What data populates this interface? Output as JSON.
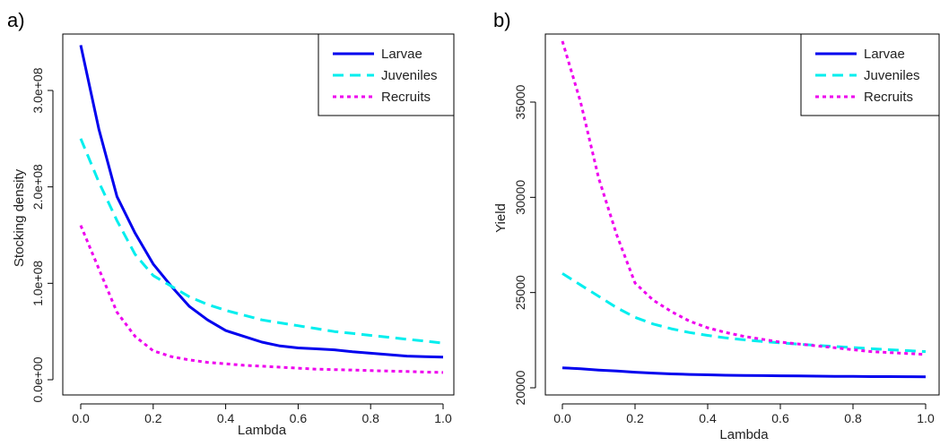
{
  "chart_data": [
    {
      "type": "line",
      "panel_label": "a)",
      "xlabel": "Lambda",
      "ylabel": "Stocking density",
      "xlim": [
        0,
        1
      ],
      "ylim": [
        0,
        360000000
      ],
      "xticks": [
        0,
        0.2,
        0.4,
        0.6,
        0.8,
        1.0
      ],
      "xtick_labels": [
        "0.0",
        "0.2",
        "0.4",
        "0.6",
        "0.8",
        "1.0"
      ],
      "yticks": [
        0,
        100000000,
        200000000,
        300000000
      ],
      "ytick_labels": [
        "0.0e+00",
        "1.0e+08",
        "2.0e+08",
        "3.0e+08"
      ],
      "legend_position": "top-right",
      "x": [
        0,
        0.05,
        0.1,
        0.15,
        0.2,
        0.25,
        0.3,
        0.35,
        0.4,
        0.45,
        0.5,
        0.55,
        0.6,
        0.65,
        0.7,
        0.75,
        0.8,
        0.85,
        0.9,
        0.95,
        1.0
      ],
      "series": [
        {
          "name": "Larvae",
          "color": "#0000ee",
          "style": "solid",
          "values": [
            347000000,
            260000000,
            190000000,
            152000000,
            120000000,
            97000000,
            76000000,
            62000000,
            51000000,
            45000000,
            39000000,
            35000000,
            33000000,
            32000000,
            31000000,
            29000000,
            27500000,
            26000000,
            24500000,
            24000000,
            23500000
          ]
        },
        {
          "name": "Juveniles",
          "color": "#00eeee",
          "style": "dashed",
          "values": [
            250000000,
            205000000,
            165000000,
            130000000,
            108000000,
            97000000,
            86000000,
            78000000,
            72000000,
            67000000,
            62000000,
            59000000,
            56000000,
            53000000,
            50000000,
            48000000,
            46000000,
            44000000,
            42000000,
            40000000,
            38000000
          ]
        },
        {
          "name": "Recruits",
          "color": "#ee00ee",
          "style": "dotted",
          "values": [
            160000000,
            115000000,
            70000000,
            45000000,
            30000000,
            24000000,
            20500000,
            18000000,
            16500000,
            15000000,
            14000000,
            13000000,
            12000000,
            11000000,
            10500000,
            10000000,
            9500000,
            9000000,
            8500000,
            8000000,
            7500000
          ]
        }
      ]
    },
    {
      "type": "line",
      "panel_label": "b)",
      "xlabel": "Lambda",
      "ylabel": "Yield",
      "xlim": [
        0,
        1
      ],
      "ylim": [
        20000,
        39000
      ],
      "xticks": [
        0,
        0.2,
        0.4,
        0.6,
        0.8,
        1.0
      ],
      "xtick_labels": [
        "0.0",
        "0.2",
        "0.4",
        "0.6",
        "0.8",
        "1.0"
      ],
      "yticks": [
        20000,
        25000,
        30000,
        35000
      ],
      "ytick_labels": [
        "20000",
        "25000",
        "30000",
        "35000"
      ],
      "legend_position": "top-right",
      "x": [
        0,
        0.05,
        0.1,
        0.15,
        0.2,
        0.25,
        0.3,
        0.35,
        0.4,
        0.45,
        0.5,
        0.55,
        0.6,
        0.65,
        0.7,
        0.75,
        0.8,
        0.85,
        0.9,
        0.95,
        1.0
      ],
      "series": [
        {
          "name": "Larvae",
          "color": "#0000ee",
          "style": "solid",
          "values": [
            21050,
            21000,
            20930,
            20880,
            20820,
            20770,
            20730,
            20700,
            20680,
            20660,
            20650,
            20640,
            20630,
            20620,
            20610,
            20600,
            20600,
            20590,
            20590,
            20585,
            20580
          ]
        },
        {
          "name": "Juveniles",
          "color": "#00eeee",
          "style": "dashed",
          "values": [
            26000,
            25400,
            24800,
            24200,
            23700,
            23350,
            23100,
            22900,
            22750,
            22620,
            22520,
            22430,
            22360,
            22290,
            22230,
            22170,
            22110,
            22050,
            22000,
            21950,
            21900
          ]
        },
        {
          "name": "Recruits",
          "color": "#ee00ee",
          "style": "dotted",
          "values": [
            38200,
            35000,
            31000,
            28000,
            25500,
            24600,
            24000,
            23500,
            23150,
            22900,
            22700,
            22550,
            22400,
            22300,
            22200,
            22100,
            22000,
            21900,
            21850,
            21800,
            21750
          ]
        }
      ]
    }
  ]
}
